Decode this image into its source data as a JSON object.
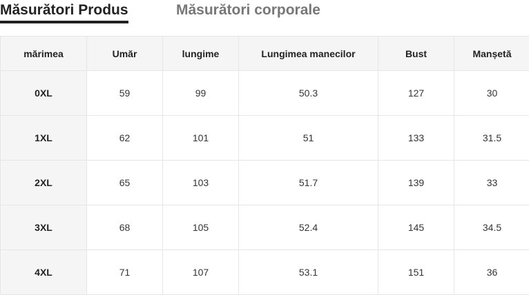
{
  "tabs": [
    {
      "label": "Măsurători Produs",
      "active": true
    },
    {
      "label": "Măsurători corporale",
      "active": false
    }
  ],
  "table": {
    "headers": [
      "mărimea",
      "Umăr",
      "lungime",
      "Lungimea manecilor",
      "Bust",
      "Manșetă"
    ],
    "rows": [
      [
        "0XL",
        "59",
        "99",
        "50.3",
        "127",
        "30"
      ],
      [
        "1XL",
        "62",
        "101",
        "51",
        "133",
        "31.5"
      ],
      [
        "2XL",
        "65",
        "103",
        "51.7",
        "139",
        "33"
      ],
      [
        "3XL",
        "68",
        "105",
        "52.4",
        "145",
        "34.5"
      ],
      [
        "4XL",
        "71",
        "107",
        "53.1",
        "151",
        "36"
      ]
    ]
  }
}
